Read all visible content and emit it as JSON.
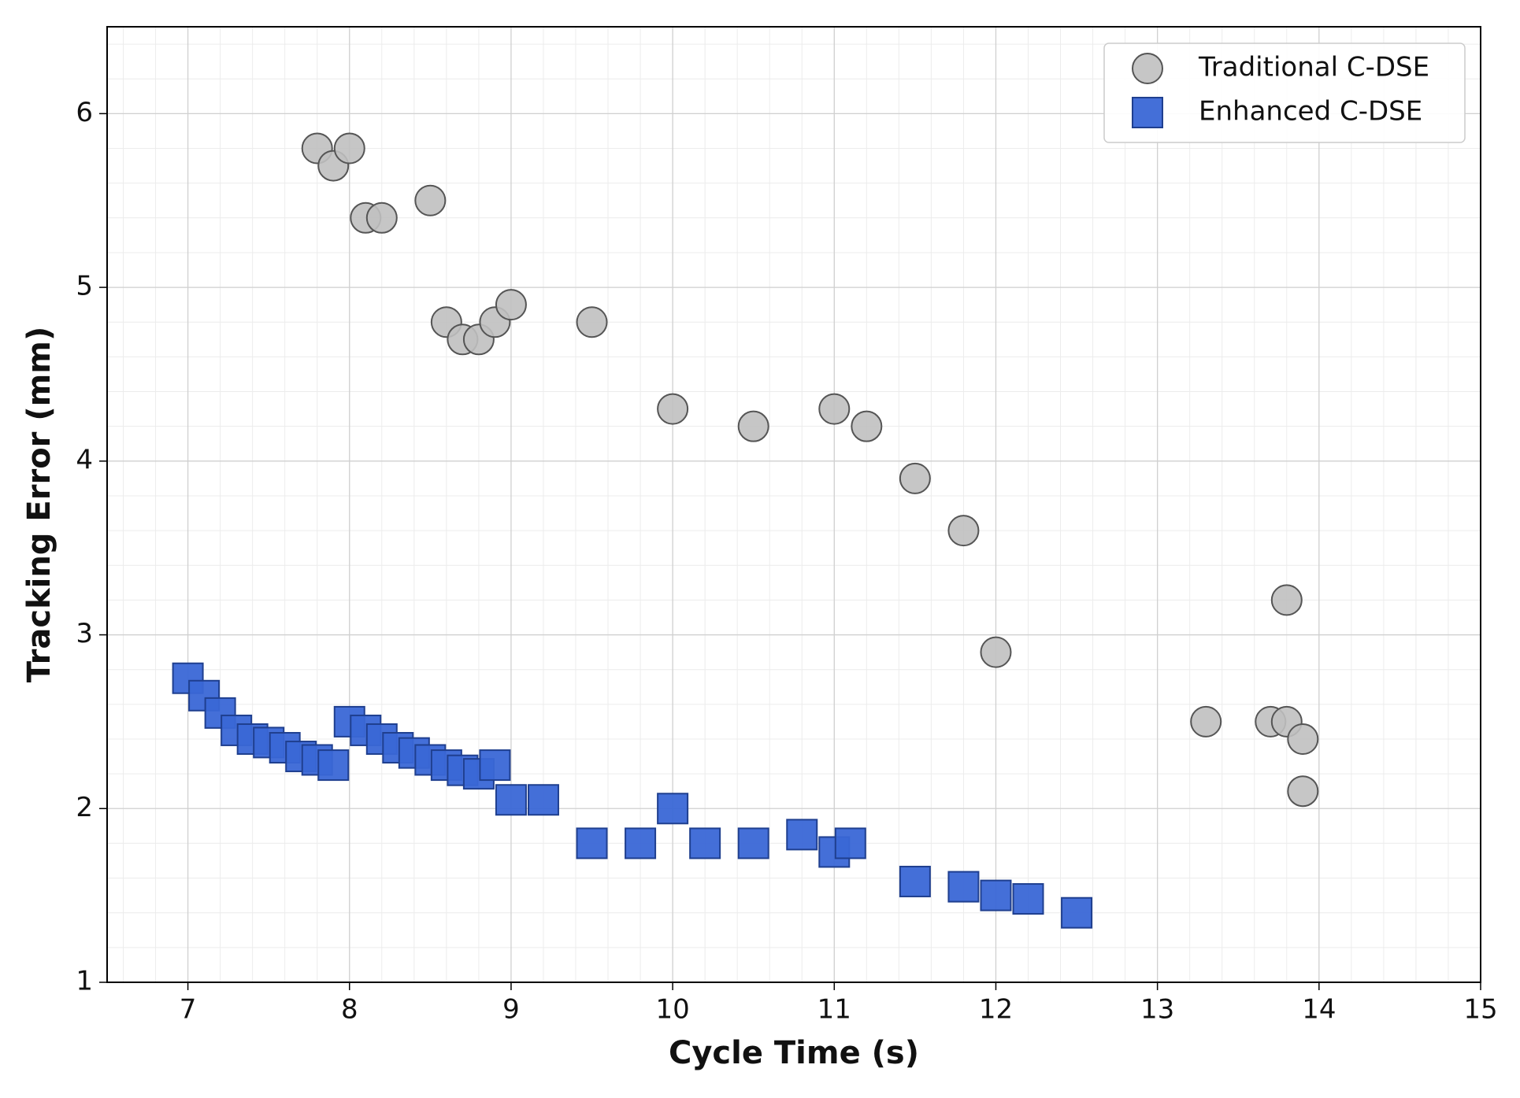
{
  "chart_data": {
    "type": "scatter",
    "x_label": "Cycle Time (s)",
    "y_label": "Tracking Error (mm)",
    "xlim": [
      6.5,
      15
    ],
    "ylim": [
      1,
      6.5
    ],
    "xticks": [
      7,
      8,
      9,
      10,
      11,
      12,
      13,
      14,
      15
    ],
    "yticks": [
      1,
      2,
      3,
      4,
      5,
      6
    ],
    "grid": true,
    "minor_grid": true,
    "legend": "upper right",
    "series": [
      {
        "name": "Traditional C-DSE",
        "color": "#c0c0c0",
        "marker": "circle",
        "x": [
          7.8,
          7.9,
          8.0,
          8.1,
          8.2,
          8.5,
          8.6,
          8.7,
          8.8,
          8.9,
          9.0,
          9.5,
          10.0,
          10.5,
          11.0,
          11.2,
          11.5,
          11.8,
          12.0,
          13.3,
          13.7,
          13.8,
          13.8,
          13.9,
          13.9
        ],
        "values": [
          5.8,
          5.7,
          5.8,
          5.4,
          5.4,
          5.5,
          4.8,
          4.7,
          4.7,
          4.8,
          4.9,
          4.8,
          4.3,
          4.2,
          4.3,
          4.2,
          3.9,
          3.6,
          2.9,
          2.5,
          2.5,
          2.5,
          3.2,
          2.4,
          2.1
        ]
      },
      {
        "name": "Enhanced C-DSE",
        "color": "#3a67d6",
        "marker": "square",
        "x": [
          7.0,
          7.1,
          7.2,
          7.3,
          7.4,
          7.5,
          7.6,
          7.7,
          7.8,
          7.9,
          8.0,
          8.1,
          8.2,
          8.3,
          8.4,
          8.5,
          8.6,
          8.7,
          8.8,
          8.9,
          9.0,
          9.2,
          9.5,
          9.8,
          10.0,
          10.2,
          10.5,
          10.8,
          11.0,
          11.1,
          11.5,
          11.8,
          12.0,
          12.2,
          12.5
        ],
        "values": [
          2.75,
          2.65,
          2.55,
          2.45,
          2.4,
          2.38,
          2.35,
          2.3,
          2.28,
          2.25,
          2.5,
          2.45,
          2.4,
          2.35,
          2.32,
          2.28,
          2.25,
          2.22,
          2.2,
          2.25,
          2.05,
          2.05,
          1.8,
          1.8,
          2.0,
          1.8,
          1.8,
          1.85,
          1.75,
          1.8,
          1.58,
          1.55,
          1.5,
          1.48,
          1.4
        ]
      }
    ]
  }
}
